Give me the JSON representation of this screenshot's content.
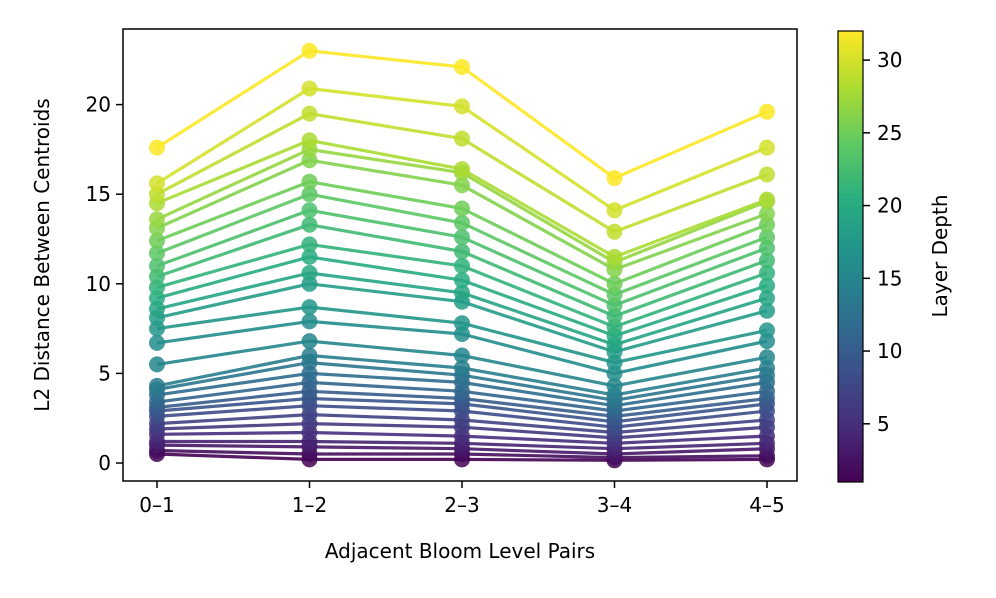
{
  "chart_data": {
    "type": "line",
    "title": "",
    "xlabel": "Adjacent Bloom Level Pairs",
    "ylabel": "L2 Distance Between Centroids",
    "categories": [
      "0–1",
      "1–2",
      "2–3",
      "3–4",
      "4–5"
    ],
    "ylim": [
      -1,
      24.2
    ],
    "yticks": [
      0,
      5,
      10,
      15,
      20
    ],
    "grid": false,
    "legend": "none",
    "colorbar": {
      "label": "Layer Depth",
      "range": [
        1,
        32
      ],
      "ticks": [
        5,
        10,
        15,
        20,
        25,
        30
      ],
      "colormap": "viridis"
    },
    "series": [
      {
        "layer": 1,
        "values": [
          0.5,
          0.2,
          0.2,
          0.15,
          0.2
        ]
      },
      {
        "layer": 2,
        "values": [
          0.7,
          0.5,
          0.5,
          0.3,
          0.4
        ]
      },
      {
        "layer": 3,
        "values": [
          1.0,
          0.9,
          0.8,
          0.5,
          0.8
        ]
      },
      {
        "layer": 4,
        "values": [
          1.2,
          1.2,
          1.1,
          0.8,
          1.1
        ]
      },
      {
        "layer": 5,
        "values": [
          1.6,
          1.7,
          1.5,
          1.1,
          1.5
        ]
      },
      {
        "layer": 6,
        "values": [
          1.9,
          2.2,
          2.0,
          1.4,
          2.0
        ]
      },
      {
        "layer": 7,
        "values": [
          2.2,
          2.7,
          2.4,
          1.7,
          2.4
        ]
      },
      {
        "layer": 8,
        "values": [
          2.6,
          3.2,
          2.9,
          2.0,
          2.9
        ]
      },
      {
        "layer": 9,
        "values": [
          2.9,
          3.6,
          3.3,
          2.3,
          3.3
        ]
      },
      {
        "layer": 10,
        "values": [
          3.1,
          4.0,
          3.6,
          2.6,
          3.6
        ]
      },
      {
        "layer": 11,
        "values": [
          3.4,
          4.5,
          4.0,
          2.9,
          4.0
        ]
      },
      {
        "layer": 12,
        "values": [
          3.8,
          5.0,
          4.5,
          3.2,
          4.5
        ]
      },
      {
        "layer": 13,
        "values": [
          4.1,
          5.6,
          4.9,
          3.5,
          4.9
        ]
      },
      {
        "layer": 14,
        "values": [
          4.3,
          6.0,
          5.3,
          3.8,
          5.3
        ]
      },
      {
        "layer": 15,
        "values": [
          5.5,
          6.8,
          6.0,
          4.3,
          5.9
        ]
      },
      {
        "layer": 16,
        "values": [
          6.7,
          7.9,
          7.2,
          5.0,
          6.8
        ]
      },
      {
        "layer": 17,
        "values": [
          7.5,
          8.7,
          7.8,
          5.6,
          7.4
        ]
      },
      {
        "layer": 18,
        "values": [
          8.1,
          10.0,
          9.0,
          6.2,
          8.5
        ]
      },
      {
        "layer": 19,
        "values": [
          8.6,
          10.6,
          9.5,
          6.6,
          9.2
        ]
      },
      {
        "layer": 20,
        "values": [
          9.2,
          11.5,
          10.2,
          7.1,
          9.9
        ]
      },
      {
        "layer": 21,
        "values": [
          9.8,
          12.2,
          11.0,
          7.6,
          10.6
        ]
      },
      {
        "layer": 22,
        "values": [
          10.4,
          13.3,
          11.8,
          8.2,
          11.3
        ]
      },
      {
        "layer": 23,
        "values": [
          11.0,
          14.1,
          12.6,
          8.8,
          12.0
        ]
      },
      {
        "layer": 24,
        "values": [
          11.7,
          15.0,
          13.4,
          9.4,
          12.6
        ]
      },
      {
        "layer": 25,
        "values": [
          12.4,
          15.7,
          14.2,
          10.0,
          13.3
        ]
      },
      {
        "layer": 26,
        "values": [
          13.1,
          16.9,
          15.5,
          10.8,
          13.9
        ]
      },
      {
        "layer": 27,
        "values": [
          13.6,
          17.5,
          16.2,
          11.2,
          14.6
        ]
      },
      {
        "layer": 28,
        "values": [
          14.5,
          18.0,
          16.4,
          11.5,
          14.7
        ]
      },
      {
        "layer": 29,
        "values": [
          15.0,
          19.5,
          18.1,
          12.9,
          16.1
        ]
      },
      {
        "layer": 30,
        "values": [
          15.6,
          20.9,
          19.9,
          14.1,
          17.6
        ]
      },
      {
        "layer": 32,
        "values": [
          17.6,
          23.0,
          22.1,
          15.9,
          19.6
        ]
      }
    ]
  }
}
